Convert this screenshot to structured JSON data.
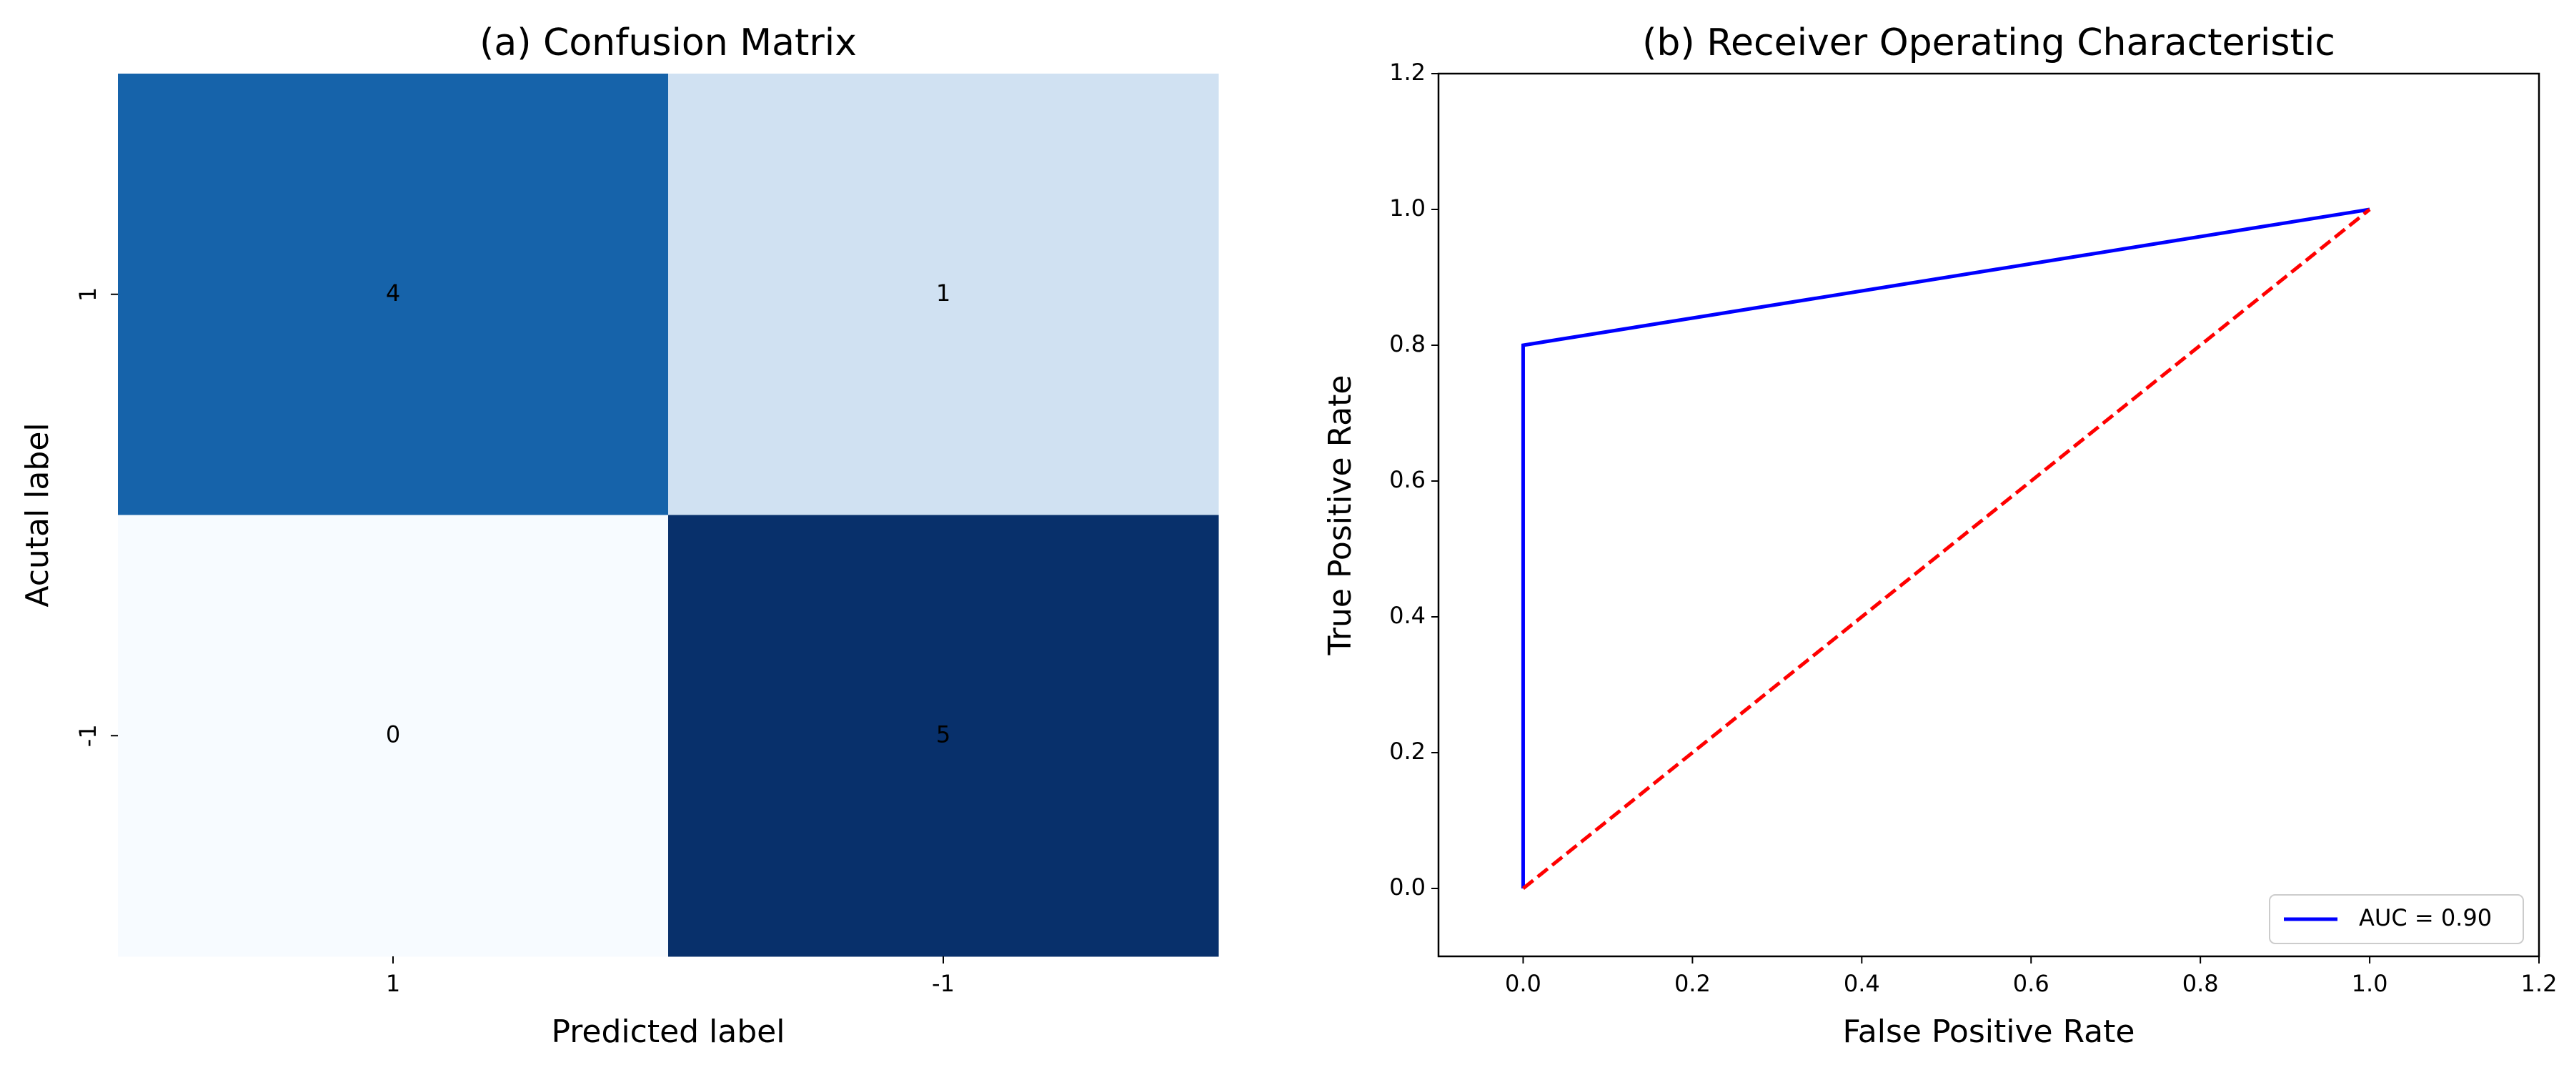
{
  "chart_data": [
    {
      "type": "heatmap",
      "title": "(a) Confusion Matrix",
      "x_label": "Predicted label",
      "y_label": "Acutal label",
      "x_categories": [
        "1",
        "-1"
      ],
      "y_categories": [
        "1",
        "-1"
      ],
      "values": [
        [
          4,
          1
        ],
        [
          0,
          5
        ]
      ],
      "cell_colors": [
        [
          "#1663aa",
          "#d0e1f2"
        ],
        [
          "#f7fbff",
          "#08306b"
        ]
      ]
    },
    {
      "type": "line",
      "title": "(b) Receiver Operating Characteristic",
      "x_label": "False Positive Rate",
      "y_label": "True Positive Rate",
      "xlim": [
        -0.1,
        1.2
      ],
      "ylim": [
        -0.1,
        1.2
      ],
      "xticks": [
        {
          "value": 0,
          "label": "0.0"
        },
        0.2,
        0.4,
        0.6,
        0.8,
        {
          "value": 1,
          "label": "1.0"
        },
        1.2
      ],
      "yticks": [
        {
          "value": 0,
          "label": "0.0"
        },
        0.2,
        0.4,
        0.6,
        0.8,
        {
          "value": 1,
          "label": "1.0"
        },
        1.2
      ],
      "legend": "lower right",
      "series": [
        {
          "name": "AUC = 0.90",
          "color": "#0000ff",
          "dash": false,
          "x": [
            0,
            0,
            1
          ],
          "values": [
            0,
            0.8,
            1
          ]
        },
        {
          "color": "#ff0000",
          "dash": true,
          "x": [
            0,
            1
          ],
          "values": [
            0,
            1
          ]
        }
      ]
    }
  ]
}
